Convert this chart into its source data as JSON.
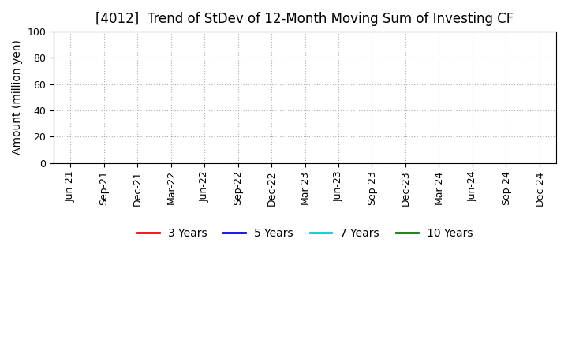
{
  "title": "[4012]  Trend of StDev of 12-Month Moving Sum of Investing CF",
  "ylabel": "Amount (million yen)",
  "ylim": [
    0,
    100
  ],
  "yticks": [
    0,
    20,
    40,
    60,
    80,
    100
  ],
  "background_color": "#ffffff",
  "grid_color": "#aaaaaa",
  "title_fontsize": 12,
  "axis_label_fontsize": 10,
  "tick_label_fontsize": 9,
  "legend_entries": [
    {
      "label": "3 Years",
      "color": "#ff0000"
    },
    {
      "label": "5 Years",
      "color": "#0000ff"
    },
    {
      "label": "7 Years",
      "color": "#00cccc"
    },
    {
      "label": "10 Years",
      "color": "#008000"
    }
  ],
  "x_tick_labels": [
    "Jun-21",
    "Sep-21",
    "Dec-21",
    "Mar-22",
    "Jun-22",
    "Sep-22",
    "Dec-22",
    "Mar-23",
    "Jun-23",
    "Sep-23",
    "Dec-23",
    "Mar-24",
    "Jun-24",
    "Sep-24",
    "Dec-24"
  ]
}
